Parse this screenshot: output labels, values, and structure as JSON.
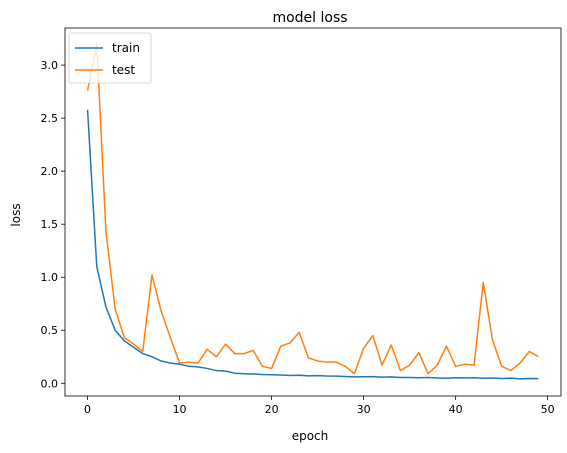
{
  "chart_data": {
    "type": "line",
    "title": "model loss",
    "xlabel": "epoch",
    "ylabel": "loss",
    "xlim": [
      -2.45,
      51.45
    ],
    "ylim": [
      -0.12,
      3.35
    ],
    "xticks": [
      0,
      10,
      20,
      30,
      40,
      50
    ],
    "yticks": [
      0.0,
      0.5,
      1.0,
      1.5,
      2.0,
      2.5,
      3.0
    ],
    "xtick_labels": [
      "0",
      "10",
      "20",
      "30",
      "40",
      "50"
    ],
    "ytick_labels": [
      "0.0",
      "0.5",
      "1.0",
      "1.5",
      "2.0",
      "2.5",
      "3.0"
    ],
    "grid": false,
    "legend_position": "top-left",
    "x": [
      0,
      1,
      2,
      3,
      4,
      5,
      6,
      7,
      8,
      9,
      10,
      11,
      12,
      13,
      14,
      15,
      16,
      17,
      18,
      19,
      20,
      21,
      22,
      23,
      24,
      25,
      26,
      27,
      28,
      29,
      30,
      31,
      32,
      33,
      34,
      35,
      36,
      37,
      38,
      39,
      40,
      41,
      42,
      43,
      44,
      45,
      46,
      47,
      48,
      49
    ],
    "series": [
      {
        "name": "train",
        "color": "#1f77b4",
        "values": [
          2.58,
          1.1,
          0.72,
          0.5,
          0.4,
          0.34,
          0.28,
          0.25,
          0.21,
          0.19,
          0.18,
          0.16,
          0.155,
          0.14,
          0.12,
          0.115,
          0.095,
          0.09,
          0.088,
          0.083,
          0.08,
          0.078,
          0.073,
          0.076,
          0.07,
          0.072,
          0.068,
          0.067,
          0.064,
          0.06,
          0.062,
          0.063,
          0.058,
          0.06,
          0.055,
          0.055,
          0.052,
          0.054,
          0.05,
          0.047,
          0.052,
          0.05,
          0.052,
          0.047,
          0.05,
          0.045,
          0.048,
          0.042,
          0.045,
          0.044
        ]
      },
      {
        "name": "test",
        "color": "#ff7f0e",
        "values": [
          2.76,
          3.2,
          1.43,
          0.7,
          0.43,
          0.37,
          0.3,
          1.02,
          0.68,
          0.43,
          0.19,
          0.2,
          0.19,
          0.32,
          0.25,
          0.37,
          0.28,
          0.28,
          0.31,
          0.16,
          0.14,
          0.35,
          0.38,
          0.48,
          0.24,
          0.21,
          0.2,
          0.2,
          0.16,
          0.09,
          0.33,
          0.45,
          0.17,
          0.36,
          0.12,
          0.17,
          0.29,
          0.09,
          0.17,
          0.35,
          0.16,
          0.18,
          0.17,
          0.95,
          0.41,
          0.16,
          0.12,
          0.19,
          0.3,
          0.25
        ]
      }
    ]
  }
}
